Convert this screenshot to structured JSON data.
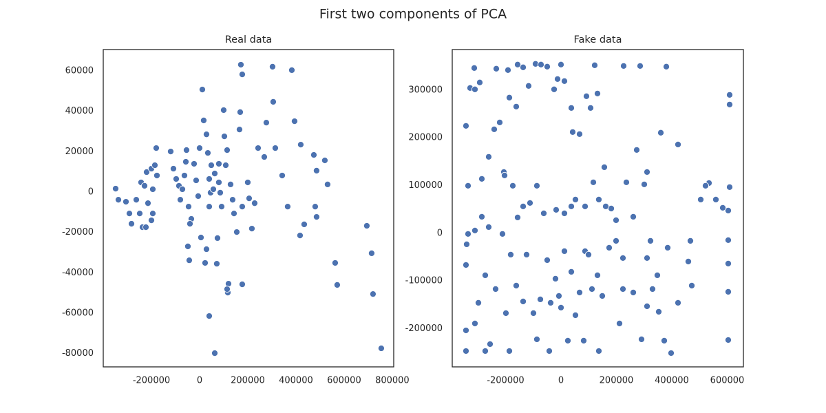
{
  "title": "First two components of PCA",
  "chart_data": [
    {
      "type": "scatter",
      "title": "Real data",
      "color": "#4c72b0",
      "xlim": [
        -400000,
        806000
      ],
      "ylim": [
        -86600,
        70600
      ],
      "xticks": [
        -200000,
        0,
        200000,
        400000,
        600000,
        800000
      ],
      "yticks": [
        -80000,
        -60000,
        -40000,
        -20000,
        0,
        20000,
        40000,
        60000
      ],
      "x": [
        -348600,
        -337100,
        -305700,
        -291400,
        -282800,
        -262800,
        -248600,
        -237100,
        -242800,
        -228600,
        -214300,
        -220000,
        -200000,
        -185700,
        -177100,
        -194300,
        -200000,
        -180000,
        -194300,
        -222900,
        -120000,
        -108600,
        -85700,
        -80000,
        -62900,
        -54300,
        -45700,
        -34300,
        -14300,
        0,
        11400,
        17100,
        28600,
        34300,
        40000,
        40000,
        5700,
        28600,
        22900,
        -42900,
        -48600,
        -40000,
        62900,
        80000,
        91400,
        74300,
        40000,
        62900,
        71400,
        102900,
        100000,
        114300,
        128600,
        142900,
        154300,
        177100,
        168600,
        171400,
        177100,
        165700,
        177100,
        200000,
        217100,
        242900,
        268600,
        277100,
        302900,
        305700,
        314300,
        342900,
        365700,
        382900,
        394300,
        420000,
        417100,
        434300,
        474300,
        485700,
        520000,
        531400,
        480000,
        485700,
        562900,
        571400,
        694300,
        714300,
        720000,
        754300,
        120000,
        117100,
        114300,
        48600,
        80000,
        108600,
        -22900,
        -97100,
        -71400,
        -5700,
        -57100,
        85700,
        137100,
        205700,
        228600,
        45700,
        57100
      ],
      "y": [
        1700,
        -3800,
        -4800,
        -10600,
        -15700,
        -3800,
        -10600,
        -17400,
        4800,
        3100,
        -5500,
        9900,
        11600,
        13300,
        8200,
        1400,
        -14000,
        21800,
        -10600,
        -17400,
        20100,
        11600,
        3100,
        -3800,
        8200,
        20800,
        -7200,
        -13300,
        5800,
        21800,
        50800,
        35500,
        28600,
        19400,
        6500,
        -7200,
        -22500,
        -28300,
        -35100,
        -33800,
        -26900,
        -15700,
        9200,
        4800,
        -7200,
        -22800,
        -61400,
        -79800,
        -35500,
        27600,
        40600,
        20800,
        3800,
        -10600,
        -19800,
        -7200,
        39600,
        63100,
        58300,
        31000,
        -45700,
        4800,
        -18100,
        21800,
        17400,
        34400,
        62100,
        44700,
        21800,
        8200,
        -7200,
        60400,
        35100,
        23500,
        -21500,
        -16000,
        18400,
        10600,
        15700,
        3800,
        -7200,
        -12300,
        -35100,
        -46000,
        -16700,
        -30300,
        -50500,
        -77400,
        -45400,
        -49800,
        -48100,
        13300,
        14000,
        13300,
        14000,
        6500,
        1400,
        -2000,
        15000,
        -300,
        -3800,
        -3100,
        -5500,
        -300,
        1400
      ]
    },
    {
      "type": "scatter",
      "title": "Fake data",
      "color": "#4c72b0",
      "xlim": [
        -392500,
        658400
      ],
      "ylim": [
        -280000,
        385000
      ],
      "xticks": [
        -200000,
        0,
        200000,
        400000,
        600000
      ],
      "yticks": [
        -200000,
        -100000,
        0,
        100000,
        200000,
        300000
      ],
      "x": [
        -342900,
        -328000,
        -313000,
        -310600,
        -293200,
        -285700,
        -260900,
        -241000,
        -221100,
        -233500,
        -191300,
        -206200,
        -203700,
        -186300,
        -161500,
        -156500,
        -136600,
        -116800,
        -91900,
        -72100,
        -49700,
        -24800,
        -12400,
        0,
        12400,
        37300,
        42200,
        52200,
        67100,
        91900,
        106800,
        116800,
        121700,
        131700,
        156500,
        181400,
        226100,
        236000,
        273300,
        285700,
        300600,
        310600,
        360300,
        380200,
        422400,
        534200,
        608700,
        608700,
        608700,
        603700,
        603700,
        603700,
        603700,
        603700,
        583900,
        559000,
        521700,
        504400,
        459600,
        467100,
        472100,
        422400,
        397500,
        347800,
        330400,
        310600,
        290700,
        260900,
        223600,
        198800,
        173900,
        149100,
        131700,
        87000,
        67100,
        52200,
        24800,
        -7500,
        -19900,
        -37300,
        -49700,
        -74500,
        -99400,
        -136600,
        -161500,
        -198800,
        -236000,
        -273300,
        -298100,
        -310600,
        -342900,
        -342900,
        -340400,
        -335400,
        -310600,
        -260900,
        -211200,
        -181400,
        -156500,
        -111800,
        -87000,
        -62100,
        -17400,
        37300,
        87000,
        136600,
        198800,
        260900,
        323000,
        385100,
        -335400,
        -285700,
        -173900,
        -124200,
        12400,
        99400,
        223600,
        310600,
        136600,
        82000,
        -42200,
        -186300,
        -273300,
        -342900,
        -255900,
        -87000,
        0,
        37300,
        111800,
        211200,
        352800,
        372700,
        -136600,
        12400,
        161500
      ],
      "y": [
        225100,
        304500,
        346300,
        301600,
        316000,
        34600,
        160200,
        217900,
        232300,
        344900,
        342000,
        128400,
        121200,
        284300,
        265500,
        353500,
        347800,
        308800,
        355000,
        353500,
        349200,
        301600,
        323200,
        353500,
        318900,
        262600,
        212100,
        70700,
        207800,
        287200,
        262600,
        106800,
        352100,
        292900,
        138500,
        51900,
        350600,
        106800,
        174600,
        350600,
        102500,
        128400,
        210700,
        349200,
        186100,
        105300,
        290000,
        269800,
        96700,
        47600,
        -14400,
        -63500,
        -122700,
        -223700,
        53400,
        70700,
        99600,
        70700,
        -59200,
        -15900,
        -109700,
        -145700,
        -251100,
        -88000,
        -116900,
        -153000,
        -222200,
        -124100,
        -116900,
        -15900,
        -30300,
        -131300,
        -88000,
        -37500,
        -124100,
        -171700,
        -225100,
        -131300,
        -95200,
        -145700,
        -56300,
        -138500,
        -167400,
        -142900,
        -109700,
        -167400,
        -116900,
        -88000,
        -145700,
        -189000,
        -203500,
        -66400,
        -23100,
        -1400,
        5800,
        13000,
        -1400,
        -44700,
        33200,
        63500,
        99600,
        41800,
        49100,
        56300,
        56300,
        70700,
        27400,
        34600,
        -15900,
        -30300,
        99600,
        114000,
        99600,
        -44700,
        -37500,
        -44700,
        -51900,
        -51900,
        -246800,
        -225100,
        -246800,
        -246800,
        -246800,
        -246800,
        -232300,
        -222200,
        -155800,
        -80800,
        -116900,
        -189000,
        -164500,
        -225100,
        56300,
        41800,
        56300
      ]
    }
  ]
}
